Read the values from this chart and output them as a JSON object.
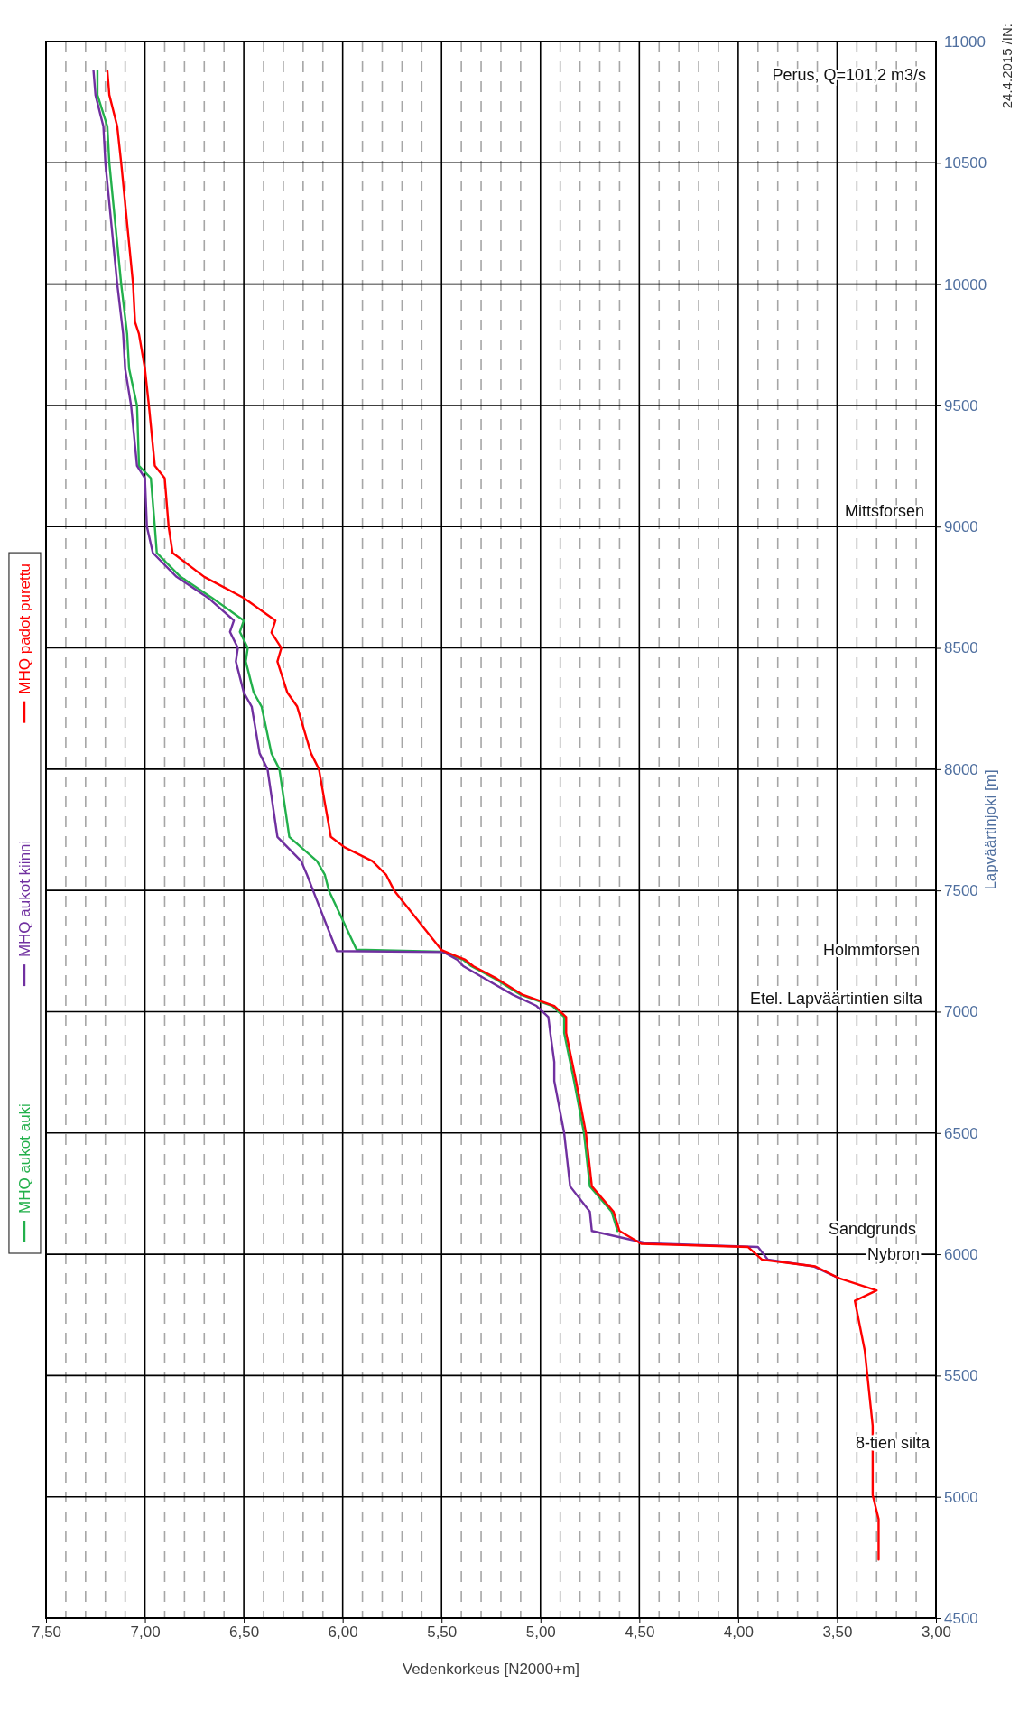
{
  "chart_data": {
    "type": "line",
    "xlabel": "Vedenkorkeus [N2000+m]",
    "ylabel": "Lapväärtinjoki [m]",
    "xlim": [
      7.5,
      3
    ],
    "xticks": [
      {
        "value": 7.5,
        "label": "7,50"
      },
      {
        "value": 7.4,
        "label": null
      },
      {
        "value": 7.3,
        "label": null
      },
      {
        "value": 7.2,
        "label": null
      },
      {
        "value": 7.1,
        "label": null
      },
      {
        "value": 7,
        "label": "7,00"
      },
      {
        "value": 6.9,
        "label": null
      },
      {
        "value": 6.8,
        "label": null
      },
      {
        "value": 6.7,
        "label": null
      },
      {
        "value": 6.6,
        "label": null
      },
      {
        "value": 6.5,
        "label": "6,50"
      },
      {
        "value": 6.4,
        "label": null
      },
      {
        "value": 6.3,
        "label": null
      },
      {
        "value": 6.2,
        "label": null
      },
      {
        "value": 6.1,
        "label": null
      },
      {
        "value": 6,
        "label": "6,00"
      },
      {
        "value": 5.9,
        "label": null
      },
      {
        "value": 5.8,
        "label": null
      },
      {
        "value": 5.7,
        "label": null
      },
      {
        "value": 5.6,
        "label": null
      },
      {
        "value": 5.5,
        "label": "5,50"
      },
      {
        "value": 5.4,
        "label": null
      },
      {
        "value": 5.3,
        "label": null
      },
      {
        "value": 5.2,
        "label": null
      },
      {
        "value": 5.1,
        "label": null
      },
      {
        "value": 5,
        "label": "5,00"
      },
      {
        "value": 4.9,
        "label": null
      },
      {
        "value": 4.8,
        "label": null
      },
      {
        "value": 4.7,
        "label": null
      },
      {
        "value": 4.6,
        "label": null
      },
      {
        "value": 4.5,
        "label": "4,50"
      },
      {
        "value": 4.4,
        "label": null
      },
      {
        "value": 4.3,
        "label": null
      },
      {
        "value": 4.2,
        "label": null
      },
      {
        "value": 4.1,
        "label": null
      },
      {
        "value": 4,
        "label": "4,00"
      },
      {
        "value": 3.9,
        "label": null
      },
      {
        "value": 3.8,
        "label": null
      },
      {
        "value": 3.7,
        "label": null
      },
      {
        "value": 3.6,
        "label": null
      },
      {
        "value": 3.5,
        "label": "3,50"
      },
      {
        "value": 3.4,
        "label": null
      },
      {
        "value": 3.3,
        "label": null
      },
      {
        "value": 3.2,
        "label": null
      },
      {
        "value": 3.1,
        "label": null
      },
      {
        "value": 3,
        "label": "3,00"
      }
    ],
    "ylim": [
      4500,
      11000
    ],
    "yticks": [
      4500,
      5000,
      5500,
      6000,
      6500,
      7000,
      7500,
      8000,
      8500,
      9000,
      9500,
      10000,
      10500,
      11000
    ],
    "grid": true,
    "legend": "left",
    "series": [
      {
        "name": "MHQ aukot auki",
        "color": "#22b04b",
        "values": [
          6096,
          6175,
          6280,
          6500,
          6714,
          6793,
          6912,
          6978,
          7024,
          7070,
          7136,
          7188,
          7214,
          7248,
          7256,
          7500,
          7564,
          7621,
          7721,
          8000,
          8065,
          8258,
          8316,
          8444,
          8500,
          8566,
          8613,
          8706,
          8793,
          8892,
          9000,
          9200,
          9251,
          9500,
          9651,
          9794,
          10000,
          10500,
          10650,
          10780,
          10880
        ],
        "x": [
          4.61,
          4.64,
          4.75,
          4.78,
          4.83,
          4.85,
          4.88,
          4.88,
          4.94,
          5.1,
          5.23,
          5.35,
          5.39,
          5.5,
          5.93,
          6.07,
          6.09,
          6.13,
          6.27,
          6.32,
          6.36,
          6.41,
          6.45,
          6.49,
          6.48,
          6.52,
          6.5,
          6.66,
          6.82,
          6.94,
          6.95,
          6.97,
          7.03,
          7.04,
          7.08,
          7.09,
          7.12,
          7.18,
          7.19,
          7.24,
          7.24
        ]
      },
      {
        "name": "MHQ aukot kiinni",
        "color": "#7030a0",
        "values": [
          5901,
          5950,
          5978,
          6030,
          6045,
          6096,
          6175,
          6280,
          6500,
          6714,
          6793,
          6912,
          6978,
          7024,
          7070,
          7136,
          7188,
          7214,
          7246,
          7250,
          7500,
          7564,
          7621,
          7721,
          8000,
          8065,
          8258,
          8316,
          8444,
          8500,
          8566,
          8613,
          8706,
          8793,
          8892,
          9000,
          9200,
          9251,
          9500,
          9651,
          9794,
          10000,
          10500,
          10650,
          10780,
          10880
        ],
        "x": [
          3.49,
          3.62,
          3.85,
          3.9,
          4.46,
          4.74,
          4.75,
          4.85,
          4.88,
          4.93,
          4.93,
          4.95,
          4.96,
          5.02,
          5.14,
          5.28,
          5.39,
          5.42,
          5.49,
          6.03,
          6.15,
          6.18,
          6.21,
          6.33,
          6.38,
          6.42,
          6.46,
          6.5,
          6.54,
          6.53,
          6.57,
          6.55,
          6.68,
          6.84,
          6.96,
          6.99,
          7.0,
          7.04,
          7.07,
          7.1,
          7.11,
          7.14,
          7.2,
          7.21,
          7.25,
          7.26
        ]
      },
      {
        "name": "MHQ padot purettu",
        "color": "#ff0000",
        "values": [
          4741,
          4908,
          5007,
          5293,
          5603,
          5808,
          5851,
          5901,
          5950,
          5978,
          6030,
          6043,
          6096,
          6175,
          6280,
          6500,
          6714,
          6793,
          6912,
          6978,
          7024,
          7070,
          7136,
          7188,
          7214,
          7254,
          7500,
          7564,
          7621,
          7678,
          7721,
          8000,
          8065,
          8258,
          8316,
          8444,
          8500,
          8563,
          8613,
          8706,
          8793,
          8892,
          9000,
          9200,
          9251,
          9500,
          9651,
          9794,
          9844,
          10000,
          10500,
          10650,
          10780,
          10880
        ],
        "x": [
          3.29,
          3.29,
          3.32,
          3.32,
          3.36,
          3.41,
          3.3,
          3.49,
          3.61,
          3.88,
          3.95,
          4.49,
          4.6,
          4.63,
          4.74,
          4.77,
          4.82,
          4.84,
          4.87,
          4.87,
          4.93,
          5.09,
          5.22,
          5.34,
          5.38,
          5.5,
          5.74,
          5.78,
          5.85,
          5.99,
          6.06,
          6.12,
          6.16,
          6.23,
          6.28,
          6.33,
          6.31,
          6.36,
          6.34,
          6.5,
          6.7,
          6.86,
          6.88,
          6.9,
          6.95,
          6.98,
          7.0,
          7.03,
          7.05,
          7.06,
          7.12,
          7.14,
          7.18,
          7.19
        ]
      }
    ],
    "annotations": [
      "8-tien silta",
      "Nybron",
      "Sandgrunds",
      "Etel. Lapväärtintien silta",
      "Holmmforsen",
      "Mittsforsen",
      "Perus, Q=101,2 m3/s",
      "24.4.2015 /IN:"
    ]
  }
}
